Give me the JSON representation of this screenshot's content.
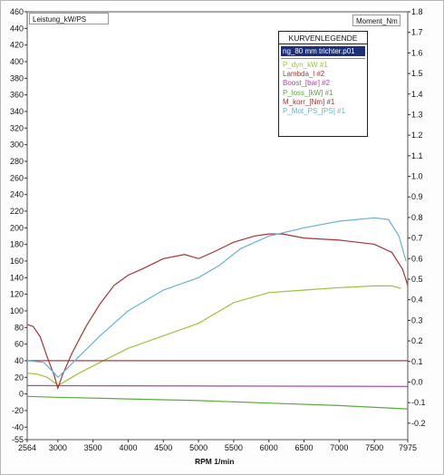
{
  "chart_data": {
    "type": "line",
    "xlabel": "RPM 1/min",
    "ylabel_left": "Leistung_kW/PS",
    "ylabel_right": "Moment_Nm",
    "xlim": [
      2564,
      7975
    ],
    "ylim_left": [
      -55,
      460
    ],
    "ylim_right": [
      -0.28,
      1.8
    ],
    "x_ticks": [
      "2564",
      "3000",
      "3500",
      "4000",
      "4500",
      "5000",
      "5500",
      "6000",
      "6500",
      "7000",
      "7500",
      "7975"
    ],
    "y_ticks_left": [
      "460",
      "440",
      "420",
      "400",
      "380",
      "360",
      "340",
      "320",
      "300",
      "280",
      "260",
      "240",
      "220",
      "200",
      "180",
      "160",
      "140",
      "120",
      "100",
      "80",
      "60",
      "40",
      "20",
      "0",
      "-20",
      "-40",
      "-55"
    ],
    "y_ticks_right": [
      "1.8",
      "1.7",
      "1.6",
      "1.5",
      "1.4",
      "1.3",
      "1.2",
      "1.1",
      "1.0",
      "0.9",
      "0.8",
      "0.7",
      "0.6",
      "0.5",
      "0.4",
      "0.3",
      "0.2",
      "0.1",
      "0.0",
      "-0.1",
      "-0.2"
    ],
    "grid": true,
    "legend_placement": "top-right",
    "legend_title": "KURVENLEGENDE",
    "legend_file": "ng_80 mm trichter.p01",
    "series": [
      {
        "name": "P_dyn_kW #1",
        "color": "#9ec23a",
        "x": [
          2564,
          2700,
          2850,
          2980,
          3000,
          3100,
          3300,
          3600,
          4000,
          4500,
          5000,
          5500,
          6000,
          6500,
          7000,
          7500,
          7750,
          7880
        ],
        "values": [
          25,
          24,
          20,
          12,
          10,
          15,
          25,
          38,
          55,
          70,
          85,
          110,
          122,
          125,
          128,
          130,
          130,
          127
        ]
      },
      {
        "name": "Lambda_l #2",
        "color": "#b23a3a",
        "x": [
          2564,
          7975
        ],
        "values": [
          40,
          40
        ]
      },
      {
        "name": "Boost_[bar] #2",
        "color": "#a84aa0",
        "x": [
          2564,
          7975
        ],
        "values": [
          10,
          9
        ]
      },
      {
        "name": "P_loss_[kW] #1",
        "color": "#5caa40",
        "x": [
          2564,
          3000,
          4000,
          5000,
          6000,
          7000,
          7975
        ],
        "values": [
          -3,
          -4,
          -6,
          -8,
          -11,
          -14,
          -18
        ]
      },
      {
        "name": "M_korr_[Nm] #1",
        "color": "#a83232",
        "x": [
          2564,
          2650,
          2750,
          2850,
          2950,
          3000,
          3060,
          3200,
          3400,
          3600,
          3800,
          4000,
          4200,
          4500,
          4800,
          5000,
          5200,
          5500,
          5800,
          6000,
          6200,
          6500,
          7000,
          7500,
          7750,
          7900,
          7975
        ],
        "values": [
          0.28,
          0.27,
          0.22,
          0.12,
          0.03,
          -0.03,
          0.03,
          0.14,
          0.27,
          0.38,
          0.47,
          0.52,
          0.55,
          0.6,
          0.62,
          0.6,
          0.63,
          0.68,
          0.71,
          0.72,
          0.72,
          0.7,
          0.69,
          0.67,
          0.63,
          0.55,
          0.47
        ]
      },
      {
        "name": "P_Mot_PS_[PS] #1",
        "color": "#66b2d8",
        "x": [
          2564,
          2800,
          2950,
          3000,
          3100,
          3300,
          3600,
          4000,
          4500,
          5000,
          5300,
          5600,
          6000,
          6500,
          7000,
          7500,
          7700,
          7850,
          7950
        ],
        "values": [
          40,
          38,
          25,
          20,
          28,
          45,
          70,
          100,
          125,
          140,
          155,
          175,
          190,
          200,
          208,
          212,
          210,
          190,
          160
        ]
      }
    ]
  }
}
